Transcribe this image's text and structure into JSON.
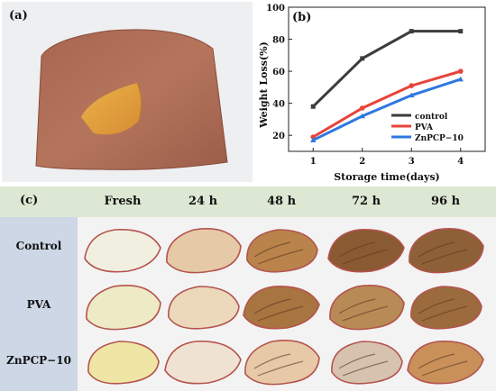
{
  "panels": {
    "a": {
      "label": "(a)"
    },
    "b": {
      "label": "(b)"
    },
    "c": {
      "label": "(c)"
    }
  },
  "chart_data": {
    "type": "line",
    "title": "",
    "xlabel": "Storage time(days)",
    "ylabel": "Weight Loss(%)",
    "x": [
      1,
      2,
      3,
      4
    ],
    "xlim": [
      0.5,
      4.5
    ],
    "ylim": [
      10,
      100
    ],
    "xticks": [
      "1",
      "2",
      "3",
      "4"
    ],
    "yticks": [
      "20",
      "40",
      "60",
      "80",
      "100"
    ],
    "grid": false,
    "legend_position": "bottom-right",
    "series": [
      {
        "name": "control",
        "values": [
          38,
          68,
          85,
          85
        ],
        "color": "#3c3c3c"
      },
      {
        "name": "PVA",
        "values": [
          19,
          37,
          51,
          60
        ],
        "color": "#e8433a"
      },
      {
        "name": "ZnPCP−10",
        "values": [
          17,
          32,
          45,
          55
        ],
        "color": "#2e78e0"
      }
    ]
  },
  "grid": {
    "columns": [
      "Fresh",
      "24 h",
      "48 h",
      "72 h",
      "96 h"
    ],
    "rows": [
      "Control",
      "PVA",
      "ZnPCP−10"
    ],
    "petal_colors": [
      [
        "#f1f0e0",
        "#e6c9a6",
        "#b9834b",
        "#8a5a33",
        "#8d6038"
      ],
      [
        "#eeeac5",
        "#ecd9bc",
        "#a8743f",
        "#b88a56",
        "#9b6b3d"
      ],
      [
        "#efe6a6",
        "#f0e2d2",
        "#e7c9a8",
        "#d7c2b0",
        "#c9905a"
      ]
    ]
  }
}
